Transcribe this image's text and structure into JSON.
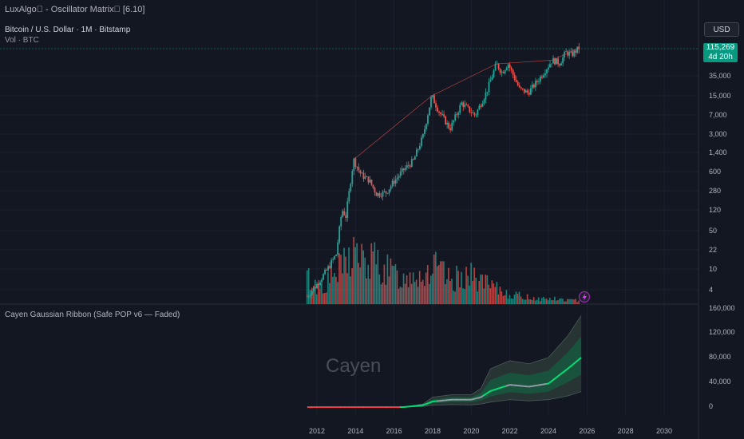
{
  "header": {
    "title": "LuxAlgo\u0000 - Oscillator Matrix\u0000 [6.10]",
    "symbol": "Bitcoin / U.S. Dollar · 1M · Bitstamp",
    "vol": "Vol · BTC"
  },
  "price_scale": {
    "currency": "USD",
    "last_price": "115,269",
    "countdown": "4d 20h",
    "tick_labels": [
      "35,000",
      "15,000",
      "7,000",
      "3,000",
      "1,400",
      "600",
      "280",
      "120",
      "50",
      "22",
      "10",
      "4"
    ]
  },
  "indicator": {
    "title": "Cayen Gaussian Ribbon (Safe POP v6 — Faded)",
    "watermark": "Cayen",
    "tick_labels": [
      "160,000",
      "120,000",
      "80,000",
      "40,000",
      "0"
    ]
  },
  "time_axis": {
    "labels": [
      "2012",
      "2014",
      "2016",
      "2018",
      "2020",
      "2022",
      "2024",
      "2026",
      "2028",
      "2030"
    ]
  },
  "colors": {
    "up": "#26a69a",
    "down": "#ef5350",
    "ribbon_up": "#00e676",
    "ribbon_down": "#ff3d3d",
    "ribbon_gray": "#9aa0ab",
    "accent": "#089981"
  },
  "chart_data": [
    {
      "type": "line",
      "name": "price",
      "yscale": "log",
      "x": [
        2011.5,
        2012,
        2012.5,
        2013,
        2013.3,
        2013.5,
        2013.9,
        2014.3,
        2014.7,
        2015.1,
        2015.6,
        2016,
        2016.5,
        2017,
        2017.5,
        2017.95,
        2018.3,
        2018.9,
        2019.5,
        2020.2,
        2020.8,
        2021.3,
        2021.6,
        2021.9,
        2022.5,
        2022.95,
        2023.5,
        2024.2,
        2024.6,
        2024.9,
        2025.2,
        2025.6
      ],
      "y": [
        3,
        5,
        9,
        18,
        120,
        90,
        1000,
        520,
        420,
        230,
        250,
        400,
        650,
        950,
        2700,
        15000,
        8000,
        3700,
        11000,
        6500,
        18000,
        58000,
        40000,
        60000,
        20000,
        17000,
        30000,
        68000,
        60000,
        95000,
        85000,
        115269
      ]
    },
    {
      "type": "bar",
      "name": "volume",
      "x": [
        2011.5,
        2012,
        2012.5,
        2013,
        2013.5,
        2014,
        2014.5,
        2015,
        2015.5,
        2016,
        2016.5,
        2017,
        2017.5,
        2018,
        2018.5,
        2019,
        2019.5,
        2020,
        2020.5,
        2021,
        2021.5,
        2022,
        2022.5,
        2023,
        2023.5,
        2024,
        2024.5,
        2025,
        2025.5
      ],
      "values": [
        40,
        25,
        30,
        45,
        60,
        80,
        55,
        65,
        50,
        45,
        35,
        50,
        40,
        55,
        45,
        30,
        45,
        40,
        35,
        25,
        20,
        15,
        12,
        10,
        8,
        8,
        7,
        6,
        5
      ]
    },
    {
      "type": "area",
      "name": "gaussian_ribbon",
      "ylim": [
        0,
        160000
      ],
      "x": [
        2011.5,
        2013,
        2015,
        2016.5,
        2017.5,
        2018,
        2019,
        2020,
        2020.5,
        2021,
        2022,
        2023,
        2024,
        2025,
        2025.7
      ],
      "mid": [
        0,
        0,
        0,
        0,
        3000,
        9000,
        12000,
        12000,
        16000,
        26000,
        36000,
        33000,
        38000,
        62000,
        80000
      ],
      "upper": [
        0,
        0,
        0,
        0,
        5000,
        16000,
        20000,
        20000,
        30000,
        62000,
        75000,
        70000,
        80000,
        115000,
        148000
      ],
      "lower": [
        0,
        0,
        0,
        0,
        1000,
        3000,
        4000,
        3500,
        5000,
        8000,
        12000,
        10000,
        12000,
        18000,
        25000
      ]
    }
  ]
}
